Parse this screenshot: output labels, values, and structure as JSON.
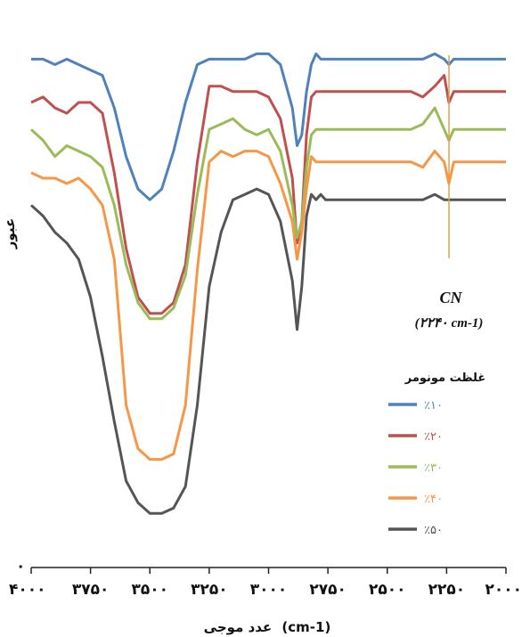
{
  "chart_data": {
    "type": "line",
    "title": "",
    "xlabel": "عدد موجی",
    "xlabel_unit": "(cm-1)",
    "ylabel": "عبور",
    "xlim": [
      4000,
      2000
    ],
    "x_reversed": true,
    "y_zero_label": "۰",
    "x_tick_labels": [
      "۴۰۰۰",
      "۳۷۵۰",
      "۳۵۰۰",
      "۳۲۵۰",
      "۳۰۰۰",
      "۲۷۵۰",
      "۲۵۰۰",
      "۲۲۵۰",
      "۲۰۰۰"
    ],
    "x_ticks": [
      4000,
      3750,
      3500,
      3250,
      3000,
      2750,
      2500,
      2250,
      2000
    ],
    "legend_title": "غلظت مونومر",
    "legend_position": "right",
    "annotation": {
      "label": "CN",
      "sub": "(۲۲۴۰ cm-1)",
      "x": 2240
    },
    "ylim": [
      0,
      100
    ],
    "x": [
      4000,
      3950,
      3900,
      3850,
      3800,
      3750,
      3700,
      3650,
      3600,
      3550,
      3500,
      3450,
      3400,
      3350,
      3300,
      3250,
      3200,
      3150,
      3100,
      3050,
      3000,
      2950,
      2900,
      2880,
      2860,
      2840,
      2820,
      2800,
      2780,
      2760,
      2740,
      2700,
      2650,
      2600,
      2550,
      2500,
      2450,
      2400,
      2350,
      2300,
      2260,
      2240,
      2220,
      2200,
      2150,
      2100,
      2050,
      2000
    ],
    "series": [
      {
        "name": "٪۱۰",
        "color": "#4f81bd",
        "values": [
          94,
          94,
          93,
          94,
          93,
          92,
          91,
          85,
          76,
          70,
          68,
          70,
          77,
          86,
          93,
          94,
          94,
          94,
          94,
          95,
          95,
          93,
          85,
          78,
          80,
          88,
          93,
          95,
          94,
          94,
          94,
          94,
          94,
          94,
          94,
          94,
          94,
          94,
          94,
          95,
          94,
          93,
          94,
          94,
          94,
          94,
          94,
          94
        ]
      },
      {
        "name": "٪۲۰",
        "color": "#c0504d",
        "values": [
          86,
          87,
          85,
          84,
          86,
          86,
          84,
          73,
          59,
          50,
          47,
          47,
          49,
          56,
          75,
          89,
          89,
          88,
          88,
          88,
          87,
          83,
          72,
          60,
          64,
          80,
          87,
          88,
          88,
          88,
          88,
          88,
          88,
          88,
          88,
          88,
          88,
          88,
          87,
          89,
          91,
          86,
          88,
          88,
          88,
          88,
          88,
          88
        ]
      },
      {
        "name": "٪۳۰",
        "color": "#9bbb59",
        "values": [
          81,
          79,
          76,
          78,
          77,
          76,
          74,
          67,
          56,
          49,
          46,
          46,
          48,
          54,
          69,
          81,
          82,
          83,
          81,
          80,
          81,
          77,
          67,
          61,
          64,
          74,
          80,
          81,
          81,
          81,
          81,
          81,
          81,
          81,
          81,
          81,
          81,
          81,
          82,
          85,
          81,
          79,
          81,
          81,
          81,
          81,
          81,
          81
        ]
      },
      {
        "name": "٪۴۰",
        "color": "#f79646",
        "values": [
          73,
          72,
          72,
          71,
          72,
          70,
          67,
          57,
          30,
          22,
          20,
          20,
          21,
          30,
          55,
          75,
          77,
          76,
          77,
          77,
          76,
          71,
          64,
          57,
          62,
          70,
          76,
          75,
          75,
          75,
          75,
          75,
          75,
          75,
          75,
          75,
          75,
          75,
          74,
          77,
          75,
          71,
          75,
          75,
          75,
          75,
          75,
          75
        ]
      },
      {
        "name": "٪۵۰",
        "color": "#555555",
        "values": [
          67,
          65,
          62,
          60,
          57,
          50,
          39,
          27,
          16,
          12,
          10,
          10,
          11,
          15,
          30,
          52,
          62,
          68,
          69,
          70,
          69,
          64,
          53,
          44,
          52,
          65,
          69,
          68,
          69,
          68,
          68,
          68,
          68,
          68,
          68,
          68,
          68,
          68,
          68,
          69,
          68,
          68,
          68,
          68,
          68,
          68,
          68,
          68
        ]
      }
    ]
  }
}
